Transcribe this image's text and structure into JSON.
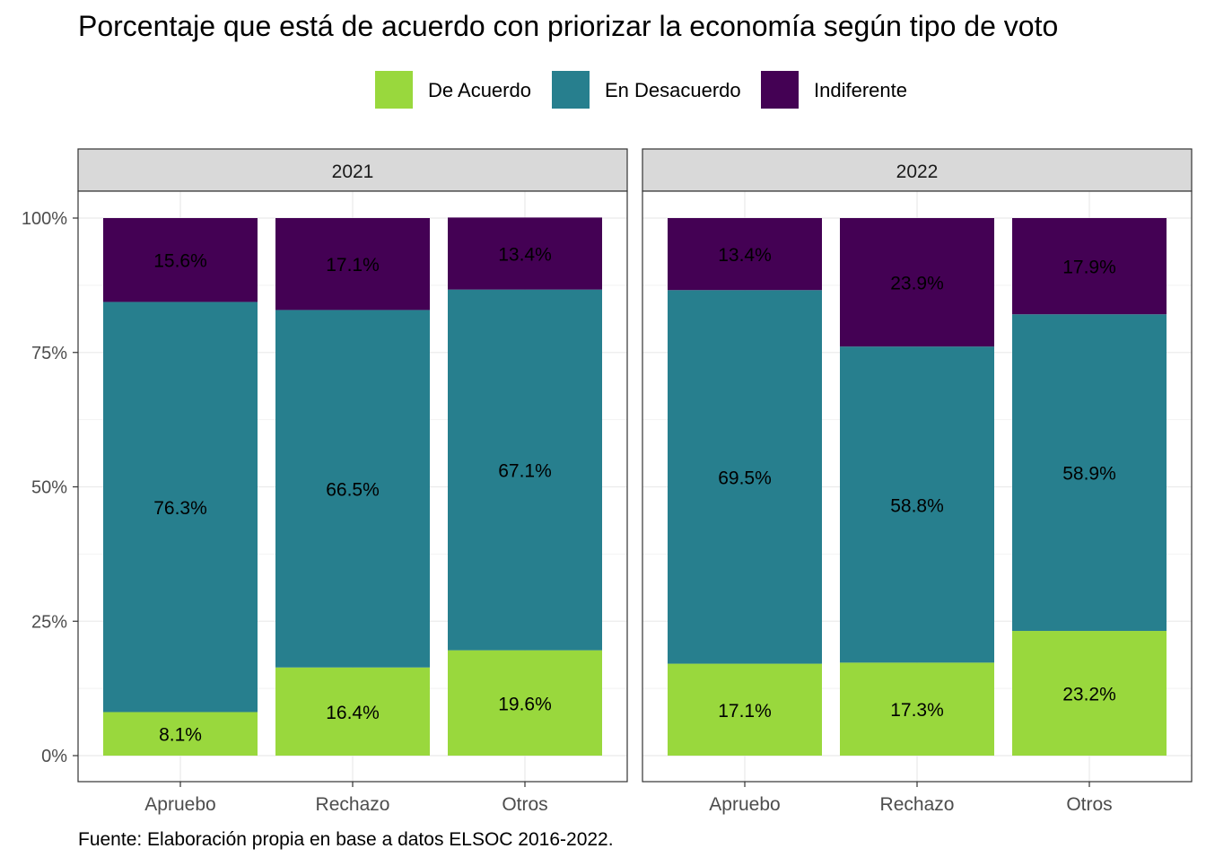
{
  "chart_data": {
    "type": "bar",
    "stacked": true,
    "title": "Porcentaje que está de acuerdo con priorizar la economía según tipo de voto",
    "caption": "Fuente: Elaboración propia en base a datos ELSOC 2016-2022.",
    "legend_position": "top",
    "grid": true,
    "ylim": [
      0,
      1
    ],
    "y_ticks": [
      {
        "value": 0,
        "label": "0%"
      },
      {
        "value": 0.25,
        "label": "25%"
      },
      {
        "value": 0.5,
        "label": "50%"
      },
      {
        "value": 0.75,
        "label": "75%"
      },
      {
        "value": 1,
        "label": "100%"
      }
    ],
    "categories": [
      "Apruebo",
      "Rechazo",
      "Otros"
    ],
    "series_meta": [
      {
        "name": "De Acuerdo",
        "color": "#99D83D"
      },
      {
        "name": "En Desacuerdo",
        "color": "#277F8E"
      },
      {
        "name": "Indiferente",
        "color": "#440154"
      }
    ],
    "panels": [
      {
        "facet": "2021",
        "series": [
          {
            "name": "De Acuerdo",
            "values": [
              0.081,
              0.164,
              0.196
            ],
            "labels": [
              "8.1%",
              "16.4%",
              "19.6%"
            ]
          },
          {
            "name": "En Desacuerdo",
            "values": [
              0.763,
              0.665,
              0.671
            ],
            "labels": [
              "76.3%",
              "66.5%",
              "67.1%"
            ]
          },
          {
            "name": "Indiferente",
            "values": [
              0.156,
              0.171,
              0.134
            ],
            "labels": [
              "15.6%",
              "17.1%",
              "13.4%"
            ]
          }
        ]
      },
      {
        "facet": "2022",
        "series": [
          {
            "name": "De Acuerdo",
            "values": [
              0.171,
              0.173,
              0.232
            ],
            "labels": [
              "17.1%",
              "17.3%",
              "23.2%"
            ]
          },
          {
            "name": "En Desacuerdo",
            "values": [
              0.695,
              0.588,
              0.589
            ],
            "labels": [
              "69.5%",
              "58.8%",
              "58.9%"
            ]
          },
          {
            "name": "Indiferente",
            "values": [
              0.134,
              0.239,
              0.179
            ],
            "labels": [
              "13.4%",
              "23.9%",
              "17.9%"
            ]
          }
        ]
      }
    ]
  }
}
